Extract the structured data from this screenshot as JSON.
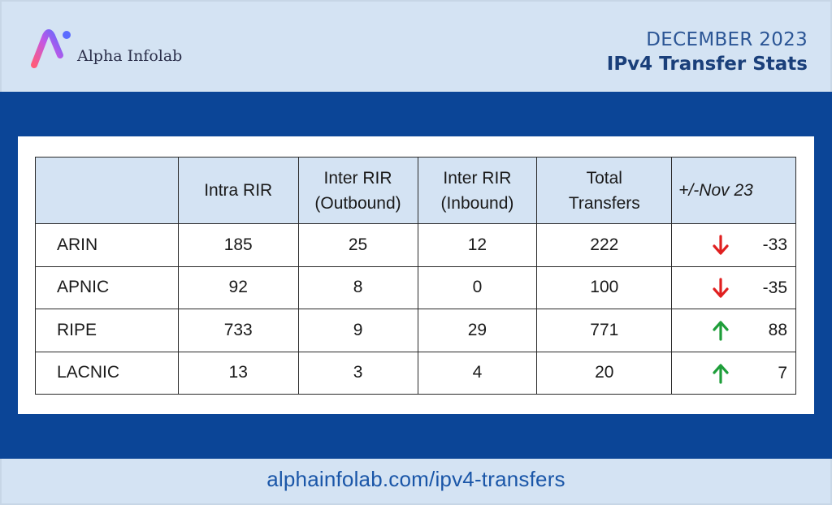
{
  "brand": {
    "name": "Alpha Infolab"
  },
  "header": {
    "month": "DECEMBER 2023",
    "title": "IPv4 Transfer Stats"
  },
  "colors": {
    "band": "#0b4597",
    "background": "#d4e3f3",
    "down": "#e02020",
    "up": "#1e9e3a",
    "footer_text": "#1a56a8"
  },
  "icons": {
    "down": "arrow-down-icon",
    "up": "arrow-up-icon"
  },
  "chart_data": {
    "type": "table",
    "columns": [
      "",
      "Intra RIR",
      "Inter RIR (Outbound)",
      "Inter RIR (Inbound)",
      "Total Transfers",
      "+/-Nov 23"
    ],
    "rows": [
      {
        "region": "ARIN",
        "intra": "185",
        "outbound": "25",
        "inbound": "12",
        "total": "222",
        "change": "-33",
        "direction": "down"
      },
      {
        "region": "APNIC",
        "intra": "92",
        "outbound": "8",
        "inbound": "0",
        "total": "100",
        "change": "-35",
        "direction": "down"
      },
      {
        "region": "RIPE",
        "intra": "733",
        "outbound": "9",
        "inbound": "29",
        "total": "771",
        "change": "88",
        "direction": "up"
      },
      {
        "region": "LACNIC",
        "intra": "13",
        "outbound": "3",
        "inbound": "4",
        "total": "20",
        "change": "7",
        "direction": "up"
      }
    ]
  },
  "footer": {
    "url": "alphainfolab.com/ipv4-transfers"
  }
}
